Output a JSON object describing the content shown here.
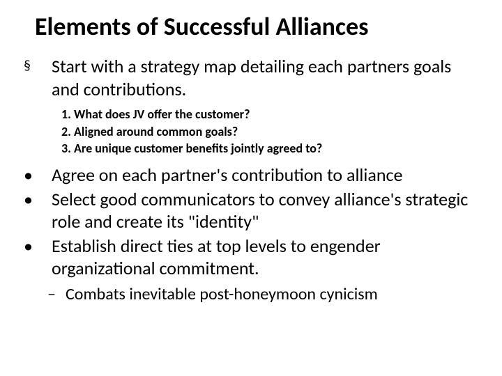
{
  "title": "Elements of Successful Alliances",
  "bullets": {
    "b1": {
      "marker": "§",
      "text": "Start with a strategy map detailing each partners goals and contributions.",
      "sub": {
        "s1": "1. What does JV offer the customer?",
        "s2": "2. Aligned around common goals?",
        "s3": "3. Are unique customer benefits jointly agreed to?"
      }
    },
    "b2": {
      "marker": "•",
      "text": "Agree on each partner's contribution to alliance"
    },
    "b3": {
      "marker": "•",
      "text": "Select good communicators to convey alliance's strategic role and create its \"identity\""
    },
    "b4": {
      "marker": "•",
      "text": "Establish direct ties at top levels to engender organizational commitment."
    },
    "dash": {
      "marker": "–",
      "text": "Combats inevitable post-honeymoon cynicism"
    }
  },
  "style": {
    "bg": "#ffffff",
    "text_color": "#000000",
    "title_fontsize_pt": 28,
    "body_fontsize_pt": 20,
    "sub_fontsize_pt": 14,
    "dash_fontsize_pt": 18,
    "title_weight": 700,
    "sub_weight": 700,
    "font_family": "Calibri"
  }
}
